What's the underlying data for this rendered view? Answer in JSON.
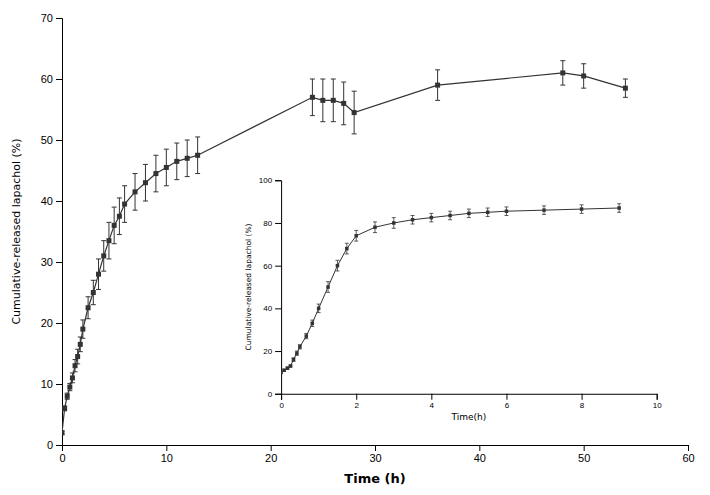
{
  "chart_data": [
    {
      "type": "line",
      "xlabel": "Time (h)",
      "ylabel": "Cumulative-released lapachol (%)",
      "x": [
        0,
        0.25,
        0.5,
        0.75,
        1.0,
        1.25,
        1.5,
        1.75,
        2.0,
        2.5,
        3.0,
        3.5,
        4.0,
        4.5,
        5.0,
        5.5,
        6.0,
        7.0,
        8.0,
        9.0,
        10.0,
        11.0,
        12.0,
        13.0,
        24.0,
        25.0,
        26.0,
        27.0,
        28.0,
        36.0,
        48.0,
        50.0,
        54.0
      ],
      "series": [
        {
          "color": "#333333",
          "marker": "square",
          "values": [
            2.0,
            6.0,
            8.0,
            9.5,
            11.0,
            13.0,
            14.5,
            16.5,
            19.0,
            22.5,
            25.0,
            28.0,
            31.0,
            33.5,
            36.0,
            37.5,
            39.5,
            41.5,
            43.0,
            44.5,
            45.5,
            46.5,
            47.0,
            47.5,
            57.0,
            56.5,
            56.5,
            56.0,
            54.5,
            59.0,
            61.0,
            60.5,
            58.5
          ],
          "errors": [
            0.3,
            0.4,
            0.5,
            0.6,
            0.8,
            1.0,
            1.2,
            1.2,
            1.5,
            1.8,
            2.0,
            2.5,
            2.5,
            3.0,
            3.0,
            3.0,
            3.0,
            3.0,
            3.0,
            3.0,
            3.0,
            3.0,
            3.0,
            3.0,
            3.0,
            3.5,
            3.5,
            3.5,
            3.5,
            2.5,
            2.0,
            2.0,
            1.5
          ]
        }
      ],
      "xlim": [
        0,
        60
      ],
      "ylim": [
        0,
        70
      ],
      "xticks": [
        0,
        10,
        20,
        30,
        40,
        50,
        60
      ],
      "yticks": [
        0,
        10,
        20,
        30,
        40,
        50,
        60,
        70
      ]
    },
    {
      "type": "line",
      "xlabel": "Time(h)",
      "ylabel": "Cumulative-released lapachol (%)",
      "x": [
        0,
        0.08,
        0.17,
        0.25,
        0.33,
        0.42,
        0.5,
        0.67,
        0.83,
        1.0,
        1.25,
        1.5,
        1.75,
        2.0,
        2.5,
        3.0,
        3.5,
        4.0,
        4.5,
        5.0,
        5.5,
        6.0,
        7.0,
        8.0,
        9.0
      ],
      "series": [
        {
          "color": "#333333",
          "marker": "square",
          "values": [
            10.0,
            11.0,
            12.0,
            13.0,
            16.0,
            19.0,
            22.0,
            27.0,
            33.0,
            40.0,
            50.0,
            60.0,
            68.0,
            74.0,
            78.0,
            80.0,
            81.5,
            82.5,
            83.5,
            84.5,
            85.0,
            85.5,
            86.0,
            86.5,
            87.0
          ],
          "errors": [
            0.5,
            0.5,
            0.5,
            0.5,
            0.8,
            1.0,
            1.0,
            1.2,
            1.5,
            2.0,
            2.5,
            2.5,
            2.5,
            2.5,
            2.5,
            2.5,
            2.0,
            2.0,
            2.0,
            2.0,
            2.0,
            2.0,
            2.0,
            2.0,
            2.0
          ]
        }
      ],
      "xlim": [
        0,
        10
      ],
      "ylim": [
        0,
        100
      ],
      "xticks": [
        0,
        2,
        4,
        6,
        8,
        10
      ],
      "yticks": [
        0,
        20,
        40,
        60,
        80,
        100
      ]
    }
  ]
}
